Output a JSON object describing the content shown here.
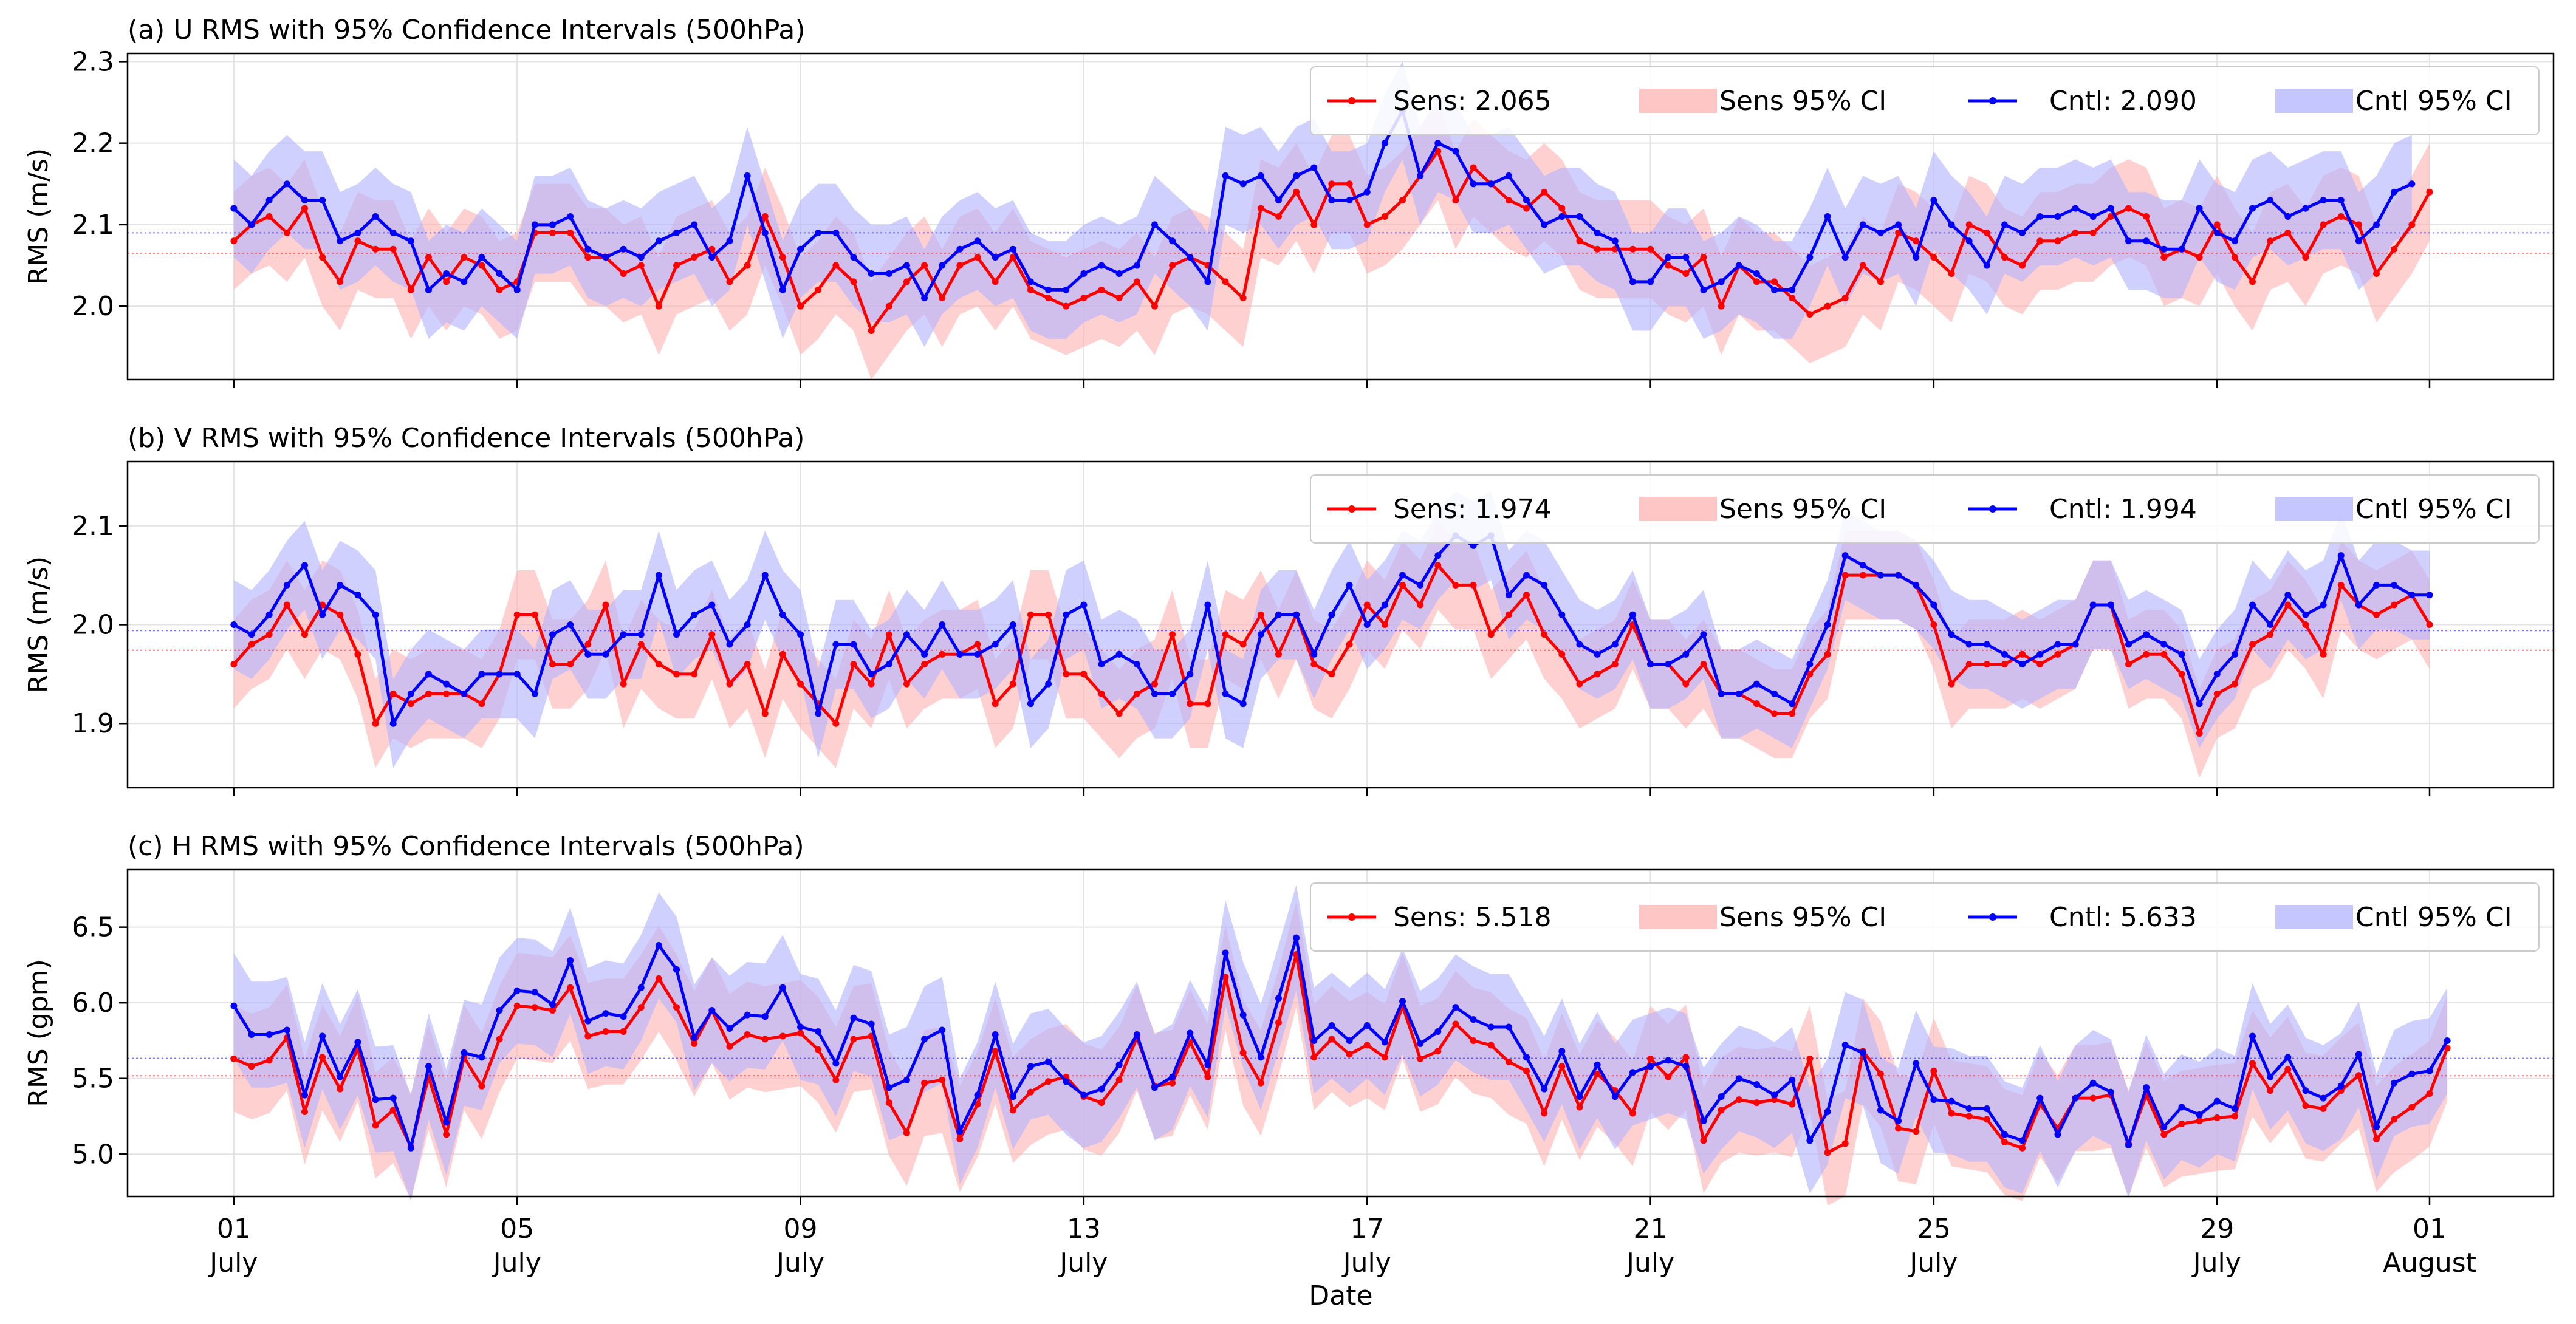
{
  "figure": {
    "xlabel": "Date",
    "x_ticks": [
      {
        "day": 1,
        "d": "01",
        "m": "July"
      },
      {
        "day": 5,
        "d": "05",
        "m": "July"
      },
      {
        "day": 9,
        "d": "09",
        "m": "July"
      },
      {
        "day": 13,
        "d": "13",
        "m": "July"
      },
      {
        "day": 17,
        "d": "17",
        "m": "July"
      },
      {
        "day": 21,
        "d": "21",
        "m": "July"
      },
      {
        "day": 25,
        "d": "25",
        "m": "July"
      },
      {
        "day": 29,
        "d": "29",
        "m": "July"
      },
      {
        "day": 32,
        "d": "01",
        "m": "August"
      }
    ],
    "x_range": [
      -0.5,
      33.75
    ],
    "colors": {
      "sens": "#ff0000",
      "cntl": "#0000ff",
      "sens_ci": "#ffb3b3",
      "cntl_ci": "#b3b3ff"
    }
  },
  "chart_data": [
    {
      "type": "line",
      "title": "(a) U RMS with 95% Confidence Intervals (500hPa)",
      "xlabel": "",
      "ylabel": "RMS (m/s)",
      "ylim": [
        1.91,
        2.31
      ],
      "yticks": [
        2.0,
        2.1,
        2.2,
        2.3
      ],
      "yticklabels": [
        "2.0",
        "2.1",
        "2.2",
        "2.3"
      ],
      "legend_location": "top-right",
      "legend": {
        "sens": "Sens: 2.065",
        "sens_ci": "Sens 95% CI",
        "cntl": "Cntl: 2.090",
        "cntl_ci": "Cntl 95% CI"
      },
      "sens_mean": 2.065,
      "cntl_mean": 2.09,
      "ci_half_width": 0.06,
      "start_day": 1.0,
      "step_days": 0.25,
      "series": [
        {
          "name": "Sens",
          "values": [
            2.08,
            2.1,
            2.11,
            2.09,
            2.12,
            2.06,
            2.03,
            2.08,
            2.07,
            2.07,
            2.02,
            2.06,
            2.03,
            2.06,
            2.05,
            2.02,
            2.03,
            2.09,
            2.09,
            2.09,
            2.06,
            2.06,
            2.04,
            2.05,
            2.0,
            2.05,
            2.06,
            2.07,
            2.03,
            2.05,
            2.11,
            2.06,
            2.0,
            2.02,
            2.05,
            2.03,
            1.97,
            2.0,
            2.03,
            2.05,
            2.01,
            2.05,
            2.06,
            2.03,
            2.06,
            2.02,
            2.01,
            2.0,
            2.01,
            2.02,
            2.01,
            2.03,
            2.0,
            2.05,
            2.06,
            2.05,
            2.03,
            2.01,
            2.12,
            2.11,
            2.14,
            2.1,
            2.15,
            2.15,
            2.1,
            2.11,
            2.13,
            2.16,
            2.19,
            2.13,
            2.17,
            2.15,
            2.13,
            2.12,
            2.14,
            2.12,
            2.08,
            2.07,
            2.07,
            2.07,
            2.07,
            2.05,
            2.04,
            2.06,
            2.0,
            2.05,
            2.03,
            2.03,
            2.01,
            1.99,
            2.0,
            2.01,
            2.05,
            2.03,
            2.09,
            2.08,
            2.06,
            2.04,
            2.1,
            2.09,
            2.06,
            2.05,
            2.08,
            2.08,
            2.09,
            2.09,
            2.11,
            2.12,
            2.11,
            2.06,
            2.07,
            2.06,
            2.1,
            2.06,
            2.03,
            2.08,
            2.09,
            2.06,
            2.1,
            2.11,
            2.1,
            2.04,
            2.07,
            2.1,
            2.14
          ]
        },
        {
          "name": "Cntl",
          "values": [
            2.12,
            2.1,
            2.13,
            2.15,
            2.13,
            2.13,
            2.08,
            2.09,
            2.11,
            2.09,
            2.08,
            2.02,
            2.04,
            2.03,
            2.06,
            2.04,
            2.02,
            2.1,
            2.1,
            2.11,
            2.07,
            2.06,
            2.07,
            2.06,
            2.08,
            2.09,
            2.1,
            2.06,
            2.08,
            2.16,
            2.09,
            2.02,
            2.07,
            2.09,
            2.09,
            2.06,
            2.04,
            2.04,
            2.05,
            2.01,
            2.05,
            2.07,
            2.08,
            2.06,
            2.07,
            2.03,
            2.02,
            2.02,
            2.04,
            2.05,
            2.04,
            2.05,
            2.1,
            2.08,
            2.06,
            2.03,
            2.16,
            2.15,
            2.16,
            2.13,
            2.16,
            2.17,
            2.13,
            2.13,
            2.14,
            2.2,
            2.24,
            2.16,
            2.2,
            2.19,
            2.15,
            2.15,
            2.16,
            2.13,
            2.1,
            2.11,
            2.11,
            2.09,
            2.08,
            2.03,
            2.03,
            2.06,
            2.06,
            2.02,
            2.03,
            2.05,
            2.04,
            2.02,
            2.02,
            2.06,
            2.11,
            2.06,
            2.1,
            2.09,
            2.1,
            2.06,
            2.13,
            2.1,
            2.08,
            2.05,
            2.1,
            2.09,
            2.11,
            2.11,
            2.12,
            2.11,
            2.12,
            2.08,
            2.08,
            2.07,
            2.07,
            2.12,
            2.09,
            2.08,
            2.12,
            2.13,
            2.11,
            2.12,
            2.13,
            2.13,
            2.08,
            2.1,
            2.14,
            2.15
          ]
        }
      ]
    },
    {
      "type": "line",
      "title": "(b) V RMS with 95% Confidence Intervals (500hPa)",
      "xlabel": "",
      "ylabel": "RMS (m/s)",
      "ylim": [
        1.835,
        2.165
      ],
      "yticks": [
        1.9,
        2.0,
        2.1
      ],
      "yticklabels": [
        "1.9",
        "2.0",
        "2.1"
      ],
      "legend_location": "top-right",
      "legend": {
        "sens": "Sens: 1.974",
        "sens_ci": "Sens 95% CI",
        "cntl": "Cntl: 1.994",
        "cntl_ci": "Cntl 95% CI"
      },
      "sens_mean": 1.974,
      "cntl_mean": 1.994,
      "ci_half_width": 0.045,
      "start_day": 1.0,
      "step_days": 0.25,
      "series": [
        {
          "name": "Sens",
          "values": [
            1.96,
            1.98,
            1.99,
            2.02,
            1.99,
            2.02,
            2.01,
            1.97,
            1.9,
            1.93,
            1.92,
            1.93,
            1.93,
            1.93,
            1.92,
            1.95,
            2.01,
            2.01,
            1.96,
            1.96,
            1.98,
            2.02,
            1.94,
            1.98,
            1.96,
            1.95,
            1.95,
            1.99,
            1.94,
            1.96,
            1.91,
            1.97,
            1.94,
            1.92,
            1.9,
            1.96,
            1.94,
            1.99,
            1.94,
            1.96,
            1.97,
            1.97,
            1.98,
            1.92,
            1.94,
            2.01,
            2.01,
            1.95,
            1.95,
            1.93,
            1.91,
            1.93,
            1.94,
            1.99,
            1.92,
            1.92,
            1.99,
            1.98,
            2.01,
            1.97,
            2.01,
            1.96,
            1.95,
            1.98,
            2.02,
            2.0,
            2.04,
            2.02,
            2.06,
            2.04,
            2.04,
            1.99,
            2.01,
            2.03,
            1.99,
            1.97,
            1.94,
            1.95,
            1.96,
            2.0,
            1.96,
            1.96,
            1.94,
            1.96,
            1.93,
            1.93,
            1.92,
            1.91,
            1.91,
            1.95,
            1.97,
            2.05,
            2.05,
            2.05,
            2.05,
            2.04,
            2.0,
            1.94,
            1.96,
            1.96,
            1.96,
            1.97,
            1.96,
            1.97,
            1.98,
            2.02,
            2.02,
            1.96,
            1.97,
            1.97,
            1.95,
            1.89,
            1.93,
            1.94,
            1.98,
            1.99,
            2.02,
            2.0,
            1.97,
            2.04,
            2.02,
            2.01,
            2.02,
            2.03,
            2.0
          ]
        },
        {
          "name": "Cntl",
          "values": [
            2.0,
            1.99,
            2.01,
            2.04,
            2.06,
            2.01,
            2.04,
            2.03,
            2.01,
            1.9,
            1.93,
            1.95,
            1.94,
            1.93,
            1.95,
            1.95,
            1.95,
            1.93,
            1.99,
            2.0,
            1.97,
            1.97,
            1.99,
            1.99,
            2.05,
            1.99,
            2.01,
            2.02,
            1.98,
            2.0,
            2.05,
            2.01,
            1.99,
            1.91,
            1.98,
            1.98,
            1.95,
            1.96,
            1.99,
            1.97,
            2.0,
            1.97,
            1.97,
            1.98,
            2.0,
            1.92,
            1.94,
            2.01,
            2.02,
            1.96,
            1.97,
            1.96,
            1.93,
            1.93,
            1.95,
            2.02,
            1.93,
            1.92,
            1.99,
            2.01,
            2.01,
            1.97,
            2.01,
            2.04,
            2.0,
            2.02,
            2.05,
            2.04,
            2.07,
            2.09,
            2.08,
            2.09,
            2.03,
            2.05,
            2.04,
            2.01,
            1.98,
            1.97,
            1.98,
            2.01,
            1.96,
            1.96,
            1.97,
            1.99,
            1.93,
            1.93,
            1.94,
            1.93,
            1.92,
            1.96,
            2.0,
            2.07,
            2.06,
            2.05,
            2.05,
            2.04,
            2.02,
            1.99,
            1.98,
            1.98,
            1.97,
            1.96,
            1.97,
            1.98,
            1.98,
            2.02,
            2.02,
            1.98,
            1.99,
            1.98,
            1.97,
            1.92,
            1.95,
            1.97,
            2.02,
            2.0,
            2.03,
            2.01,
            2.02,
            2.07,
            2.02,
            2.04,
            2.04,
            2.03,
            2.03
          ]
        }
      ]
    },
    {
      "type": "line",
      "title": "(c) H RMS with 95% Confidence Intervals (500hPa)",
      "xlabel": "",
      "ylabel": "RMS (gpm)",
      "ylim": [
        4.72,
        6.88
      ],
      "yticks": [
        5.0,
        5.5,
        6.0,
        6.5
      ],
      "yticklabels": [
        "5.0",
        "5.5",
        "6.0",
        "6.5"
      ],
      "legend_location": "top-right",
      "legend": {
        "sens": "Sens: 5.518",
        "sens_ci": "Sens 95% CI",
        "cntl": "Cntl: 5.633",
        "cntl_ci": "Cntl 95% CI"
      },
      "sens_mean": 5.518,
      "cntl_mean": 5.633,
      "ci_half_width": 0.35,
      "start_day": 1.0,
      "step_days": 0.25,
      "series": [
        {
          "name": "Sens",
          "values": [
            5.63,
            5.58,
            5.62,
            5.77,
            5.28,
            5.64,
            5.43,
            5.7,
            5.19,
            5.29,
            5.05,
            5.51,
            5.13,
            5.64,
            5.45,
            5.76,
            5.98,
            5.97,
            5.95,
            6.1,
            5.78,
            5.81,
            5.81,
            5.97,
            6.16,
            5.97,
            5.73,
            5.95,
            5.71,
            5.79,
            5.76,
            5.78,
            5.8,
            5.69,
            5.49,
            5.76,
            5.78,
            5.34,
            5.14,
            5.47,
            5.49,
            5.1,
            5.33,
            5.68,
            5.29,
            5.41,
            5.48,
            5.51,
            5.38,
            5.34,
            5.49,
            5.77,
            5.45,
            5.47,
            5.74,
            5.51,
            6.17,
            5.67,
            5.47,
            5.87,
            6.32,
            5.64,
            5.76,
            5.66,
            5.72,
            5.64,
            5.98,
            5.63,
            5.68,
            5.86,
            5.75,
            5.72,
            5.61,
            5.55,
            5.27,
            5.58,
            5.31,
            5.53,
            5.42,
            5.27,
            5.63,
            5.51,
            5.64,
            5.09,
            5.29,
            5.36,
            5.34,
            5.36,
            5.33,
            5.63,
            5.01,
            5.07,
            5.68,
            5.53,
            5.17,
            5.15,
            5.55,
            5.27,
            5.25,
            5.23,
            5.08,
            5.04,
            5.33,
            5.17,
            5.37,
            5.37,
            5.39,
            5.07,
            5.39,
            5.13,
            5.2,
            5.22,
            5.24,
            5.25,
            5.6,
            5.42,
            5.56,
            5.32,
            5.3,
            5.42,
            5.52,
            5.1,
            5.23,
            5.31,
            5.4,
            5.7
          ]
        },
        {
          "name": "Cntl",
          "values": [
            5.98,
            5.79,
            5.79,
            5.82,
            5.39,
            5.78,
            5.51,
            5.74,
            5.36,
            5.37,
            5.04,
            5.58,
            5.21,
            5.67,
            5.64,
            5.95,
            6.08,
            6.07,
            5.99,
            6.28,
            5.88,
            5.93,
            5.91,
            6.1,
            6.38,
            6.22,
            5.77,
            5.95,
            5.83,
            5.92,
            5.91,
            6.1,
            5.84,
            5.81,
            5.6,
            5.9,
            5.86,
            5.44,
            5.49,
            5.76,
            5.82,
            5.15,
            5.39,
            5.79,
            5.38,
            5.58,
            5.61,
            5.48,
            5.39,
            5.43,
            5.59,
            5.79,
            5.44,
            5.51,
            5.8,
            5.59,
            6.33,
            5.92,
            5.64,
            6.03,
            6.43,
            5.75,
            5.85,
            5.75,
            5.85,
            5.74,
            6.01,
            5.73,
            5.81,
            5.97,
            5.89,
            5.84,
            5.84,
            5.64,
            5.43,
            5.68,
            5.38,
            5.59,
            5.38,
            5.54,
            5.58,
            5.62,
            5.58,
            5.22,
            5.38,
            5.5,
            5.46,
            5.39,
            5.49,
            5.09,
            5.28,
            5.72,
            5.67,
            5.29,
            5.22,
            5.6,
            5.36,
            5.35,
            5.3,
            5.3,
            5.13,
            5.09,
            5.37,
            5.13,
            5.37,
            5.47,
            5.41,
            5.06,
            5.44,
            5.18,
            5.31,
            5.26,
            5.35,
            5.3,
            5.78,
            5.51,
            5.64,
            5.42,
            5.37,
            5.45,
            5.66,
            5.18,
            5.47,
            5.53,
            5.55,
            5.75
          ]
        }
      ]
    }
  ]
}
